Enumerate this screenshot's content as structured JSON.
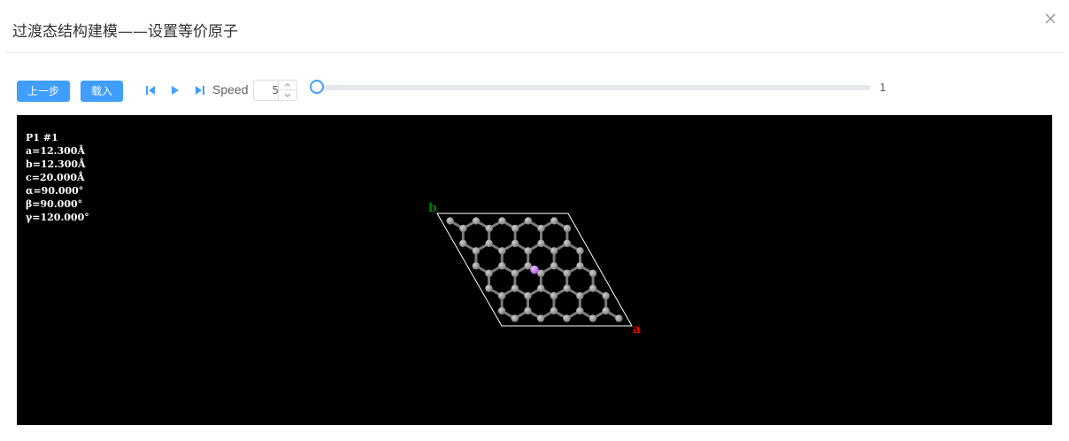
{
  "dialog": {
    "title": "过渡态结构建模——设置等价原子",
    "close_icon": "close-icon"
  },
  "toolbar": {
    "prev_label": "上一步",
    "load_label": "载入",
    "first_icon": "skip-back-icon",
    "play_icon": "play-icon",
    "last_icon": "skip-forward-icon",
    "speed_label": "Speed",
    "speed_value": "5",
    "frame_slider_value": 1,
    "frame_value_text": "1"
  },
  "viewer": {
    "cell_info": [
      "P1 #1",
      "a=12.300Å",
      "b=12.300Å",
      "c=20.000Å",
      "α=90.000°",
      "β=90.000°",
      "γ=120.000°"
    ],
    "axis_a_label": "a",
    "axis_b_label": "b"
  },
  "colors": {
    "accent": "#409eff",
    "axis_a": "#ff0000",
    "axis_b": "#008000",
    "carbon": "#808080",
    "dopant": "#b060e0"
  }
}
